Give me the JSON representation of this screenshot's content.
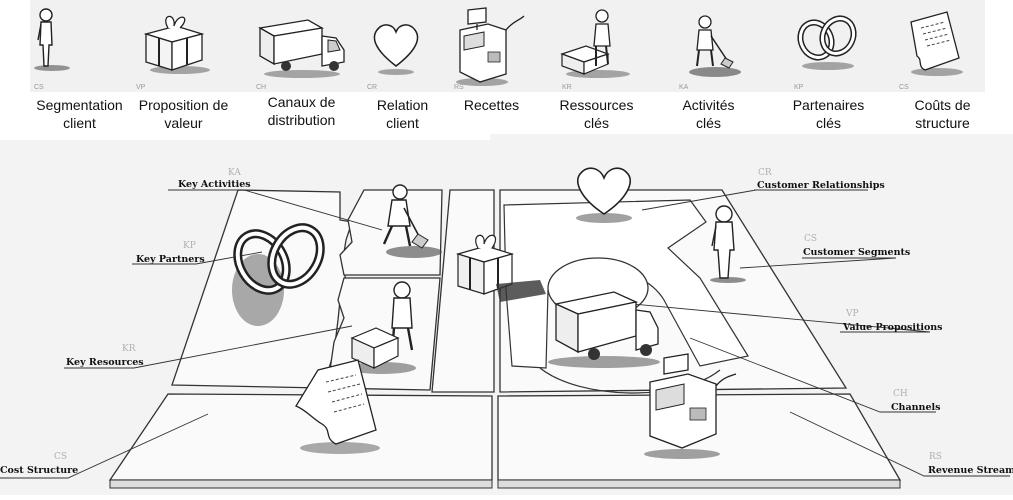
{
  "top_labels": [
    {
      "text": "Segmentation\nclient"
    },
    {
      "text": "Proposition de\nvaleur"
    },
    {
      "text": "Canaux de\ndistribution"
    },
    {
      "text": "Relation\nclient"
    },
    {
      "text": "Recettes"
    },
    {
      "text": "Ressources\nclés"
    },
    {
      "text": "Activités\nclés"
    },
    {
      "text": "Partenaires\nclés"
    },
    {
      "text": "Coûts de\nstructure"
    }
  ],
  "tile_abbrs": [
    "CS",
    "VP",
    "CH",
    "CR",
    "RS",
    "KR",
    "KA",
    "KP",
    "CS"
  ],
  "canvas_labels": {
    "key_activities": {
      "abbr": "KA",
      "label": "Key Activities"
    },
    "key_partners": {
      "abbr": "KP",
      "label": "Key Partners"
    },
    "key_resources": {
      "abbr": "KR",
      "label": "Key Resources"
    },
    "cost_structure": {
      "abbr": "CS",
      "label": "Cost Structure"
    },
    "customer_relationships": {
      "abbr": "CR",
      "label": "Customer Relationships"
    },
    "customer_segments": {
      "abbr": "CS",
      "label": "Customer Segments"
    },
    "value_propositions": {
      "abbr": "VP",
      "label": "Value Propositions"
    },
    "channels": {
      "abbr": "CH",
      "label": "Channels"
    },
    "revenue_streams": {
      "abbr": "RS",
      "label": "Revenue Streams"
    }
  }
}
